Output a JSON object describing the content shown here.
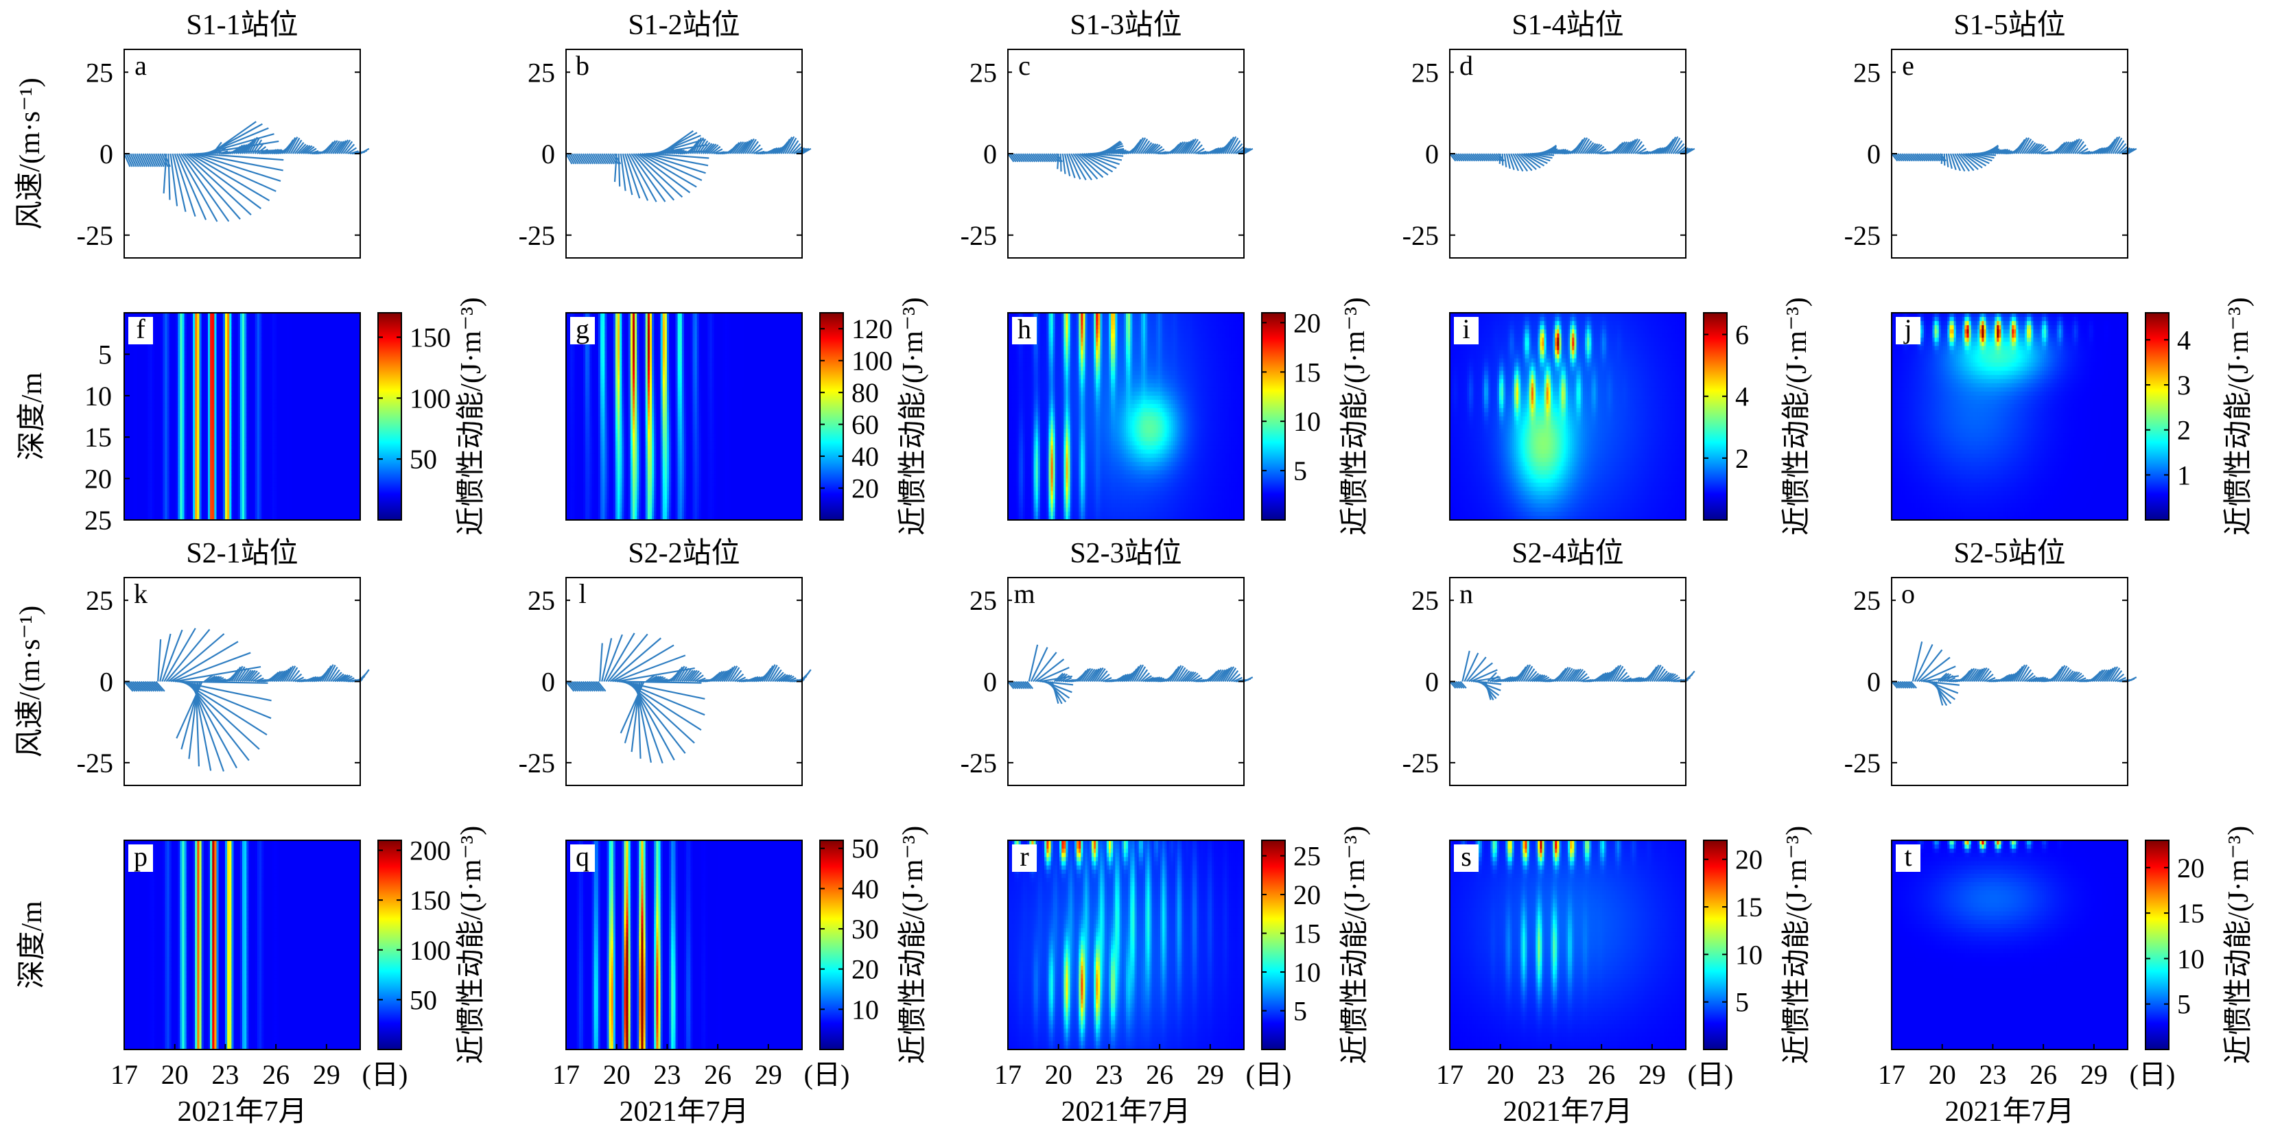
{
  "figure": {
    "row_titles": {
      "s1": [
        "S1-1站位",
        "S1-2站位",
        "S1-3站位",
        "S1-4站位",
        "S1-5站位"
      ],
      "s2": [
        "S2-1站位",
        "S2-2站位",
        "S2-3站位",
        "S2-4站位",
        "S2-5站位"
      ]
    },
    "wind_ylabel": "风速/(m·s⁻¹)",
    "depth_ylabel": "深度/m",
    "colorbar_label": "近惯性动能/(J·m⁻³)",
    "x_unit": "(日)",
    "x_label": "2021年7月"
  },
  "chart_data": [
    {
      "type": "quiver",
      "panel": "a",
      "station": "S1-1站位",
      "title": "S1-1站位",
      "ylabel": "风速/(m·s⁻¹)",
      "xlim": [
        17,
        31
      ],
      "ylim": [
        -32,
        32
      ],
      "yticks": [
        25,
        0,
        -25
      ],
      "strength": 1.0,
      "peak_day": 21.0,
      "peak_speed": 31,
      "color": "#2e7dc1"
    },
    {
      "type": "quiver",
      "panel": "b",
      "station": "S1-2站位",
      "title": "S1-2站位",
      "xlim": [
        17,
        31
      ],
      "ylim": [
        -32,
        32
      ],
      "yticks": [
        25,
        0,
        -25
      ],
      "strength": 0.72,
      "peak_day": 21.5,
      "peak_speed": 22,
      "color": "#2e7dc1"
    },
    {
      "type": "quiver",
      "panel": "c",
      "station": "S1-3站位",
      "title": "S1-3站位",
      "xlim": [
        17,
        31
      ],
      "ylim": [
        -32,
        32
      ],
      "yticks": [
        25,
        0,
        -25
      ],
      "strength": 0.5,
      "peak_day": 21.5,
      "peak_speed": 12,
      "color": "#2e7dc1"
    },
    {
      "type": "quiver",
      "panel": "d",
      "station": "S1-4站位",
      "title": "S1-4站位",
      "xlim": [
        17,
        31
      ],
      "ylim": [
        -32,
        32
      ],
      "yticks": [
        25,
        0,
        -25
      ],
      "strength": 0.42,
      "peak_day": 21.5,
      "peak_speed": 8,
      "color": "#2e7dc1"
    },
    {
      "type": "quiver",
      "panel": "e",
      "station": "S1-5站位",
      "title": "S1-5站位",
      "xlim": [
        17,
        31
      ],
      "ylim": [
        -32,
        32
      ],
      "yticks": [
        25,
        0,
        -25
      ],
      "strength": 0.42,
      "peak_day": 21.5,
      "peak_speed": 8,
      "color": "#2e7dc1"
    },
    {
      "type": "heatmap",
      "panel": "f",
      "ylabel": "深度/m",
      "colorbar_label": "近惯性动能/(J·m⁻³)",
      "xlim": [
        17,
        31
      ],
      "ylim": [
        0,
        25
      ],
      "yticks": [
        5,
        10,
        15,
        20,
        25
      ],
      "clim": [
        0,
        170
      ],
      "cticks": [
        50,
        100,
        150
      ],
      "pattern": "s1-1"
    },
    {
      "type": "heatmap",
      "panel": "g",
      "colorbar_label": "近惯性动能/(J·m⁻³)",
      "xlim": [
        17,
        31
      ],
      "ylim": [
        0,
        25
      ],
      "clim": [
        0,
        130
      ],
      "cticks": [
        20,
        40,
        60,
        80,
        100,
        120
      ],
      "pattern": "s1-2"
    },
    {
      "type": "heatmap",
      "panel": "h",
      "colorbar_label": "近惯性动能/(J·m⁻³)",
      "xlim": [
        17,
        31
      ],
      "ylim": [
        0,
        25
      ],
      "clim": [
        0,
        21
      ],
      "cticks": [
        5,
        10,
        15,
        20
      ],
      "pattern": "s1-3"
    },
    {
      "type": "heatmap",
      "panel": "i",
      "colorbar_label": "近惯性动能/(J·m⁻³)",
      "xlim": [
        17,
        31
      ],
      "ylim": [
        0,
        25
      ],
      "clim": [
        0,
        6.7
      ],
      "cticks": [
        2,
        4,
        6
      ],
      "pattern": "s1-4"
    },
    {
      "type": "heatmap",
      "panel": "j",
      "colorbar_label": "近惯性动能/(J·m⁻³)",
      "xlim": [
        17,
        31
      ],
      "ylim": [
        0,
        25
      ],
      "clim": [
        0,
        4.6
      ],
      "cticks": [
        1,
        2,
        3,
        4
      ],
      "pattern": "s1-5"
    },
    {
      "type": "quiver",
      "panel": "k",
      "station": "S2-1站位",
      "title": "S2-1站位",
      "ylabel": "风速/(m·s⁻¹)",
      "xlim": [
        17,
        31
      ],
      "ylim": [
        -32,
        32
      ],
      "yticks": [
        25,
        0,
        -25
      ],
      "strength": 1.0,
      "peak_day": 20.5,
      "peak_speed": 33,
      "color": "#2e7dc1"
    },
    {
      "type": "quiver",
      "panel": "l",
      "station": "S2-2站位",
      "title": "S2-2站位",
      "xlim": [
        17,
        31
      ],
      "ylim": [
        -32,
        32
      ],
      "yticks": [
        25,
        0,
        -25
      ],
      "strength": 0.9,
      "peak_day": 20.5,
      "peak_speed": 30,
      "color": "#2e7dc1"
    },
    {
      "type": "quiver",
      "panel": "m",
      "station": "S2-3站位",
      "title": "S2-3站位",
      "xlim": [
        17,
        31
      ],
      "ylim": [
        -32,
        32
      ],
      "yticks": [
        25,
        0,
        -25
      ],
      "strength": 0.4,
      "peak_day": 18.5,
      "peak_speed": 12,
      "color": "#2e7dc1"
    },
    {
      "type": "quiver",
      "panel": "n",
      "station": "S2-4站位",
      "title": "S2-4站位",
      "xlim": [
        17,
        31
      ],
      "ylim": [
        -32,
        32
      ],
      "yticks": [
        25,
        0,
        -25
      ],
      "strength": 0.35,
      "peak_day": 18.0,
      "peak_speed": 10,
      "color": "#2e7dc1"
    },
    {
      "type": "quiver",
      "panel": "o",
      "station": "S2-5站位",
      "title": "S2-5站位",
      "xlim": [
        17,
        31
      ],
      "ylim": [
        -32,
        32
      ],
      "yticks": [
        25,
        0,
        -25
      ],
      "strength": 0.35,
      "peak_day": 18.5,
      "peak_speed": 13,
      "color": "#2e7dc1"
    },
    {
      "type": "heatmap",
      "panel": "p",
      "ylabel": "深度/m",
      "colorbar_label": "近惯性动能/(J·m⁻³)",
      "xlim": [
        17,
        31
      ],
      "ylim": [
        0,
        25
      ],
      "xticks": [
        17,
        20,
        23,
        26,
        29
      ],
      "xlabel": "2021年7月",
      "clim": [
        0,
        210
      ],
      "cticks": [
        50,
        100,
        150,
        200
      ],
      "pattern": "s2-1"
    },
    {
      "type": "heatmap",
      "panel": "q",
      "colorbar_label": "近惯性动能/(J·m⁻³)",
      "xlim": [
        17,
        31
      ],
      "ylim": [
        0,
        25
      ],
      "xticks": [
        17,
        20,
        23,
        26,
        29
      ],
      "xlabel": "2021年7月",
      "clim": [
        0,
        52
      ],
      "cticks": [
        10,
        20,
        30,
        40,
        50
      ],
      "pattern": "s2-2"
    },
    {
      "type": "heatmap",
      "panel": "r",
      "colorbar_label": "近惯性动能/(J·m⁻³)",
      "xlim": [
        17,
        31
      ],
      "ylim": [
        0,
        25
      ],
      "xticks": [
        17,
        20,
        23,
        26,
        29
      ],
      "xlabel": "2021年7月",
      "clim": [
        0,
        27
      ],
      "cticks": [
        5,
        10,
        15,
        20,
        25
      ],
      "pattern": "s2-3"
    },
    {
      "type": "heatmap",
      "panel": "s",
      "colorbar_label": "近惯性动能/(J·m⁻³)",
      "xlim": [
        17,
        31
      ],
      "ylim": [
        0,
        25
      ],
      "xticks": [
        17,
        20,
        23,
        26,
        29
      ],
      "xlabel": "2021年7月",
      "clim": [
        0,
        22
      ],
      "cticks": [
        5,
        10,
        15,
        20
      ],
      "pattern": "s2-4"
    },
    {
      "type": "heatmap",
      "panel": "t",
      "colorbar_label": "近惯性动能/(J·m⁻³)",
      "xlim": [
        17,
        31
      ],
      "ylim": [
        0,
        25
      ],
      "xticks": [
        17,
        20,
        23,
        26,
        29
      ],
      "xlabel": "2021年7月",
      "clim": [
        0,
        23
      ],
      "cticks": [
        5,
        10,
        15,
        20
      ],
      "pattern": "s2-5"
    }
  ]
}
